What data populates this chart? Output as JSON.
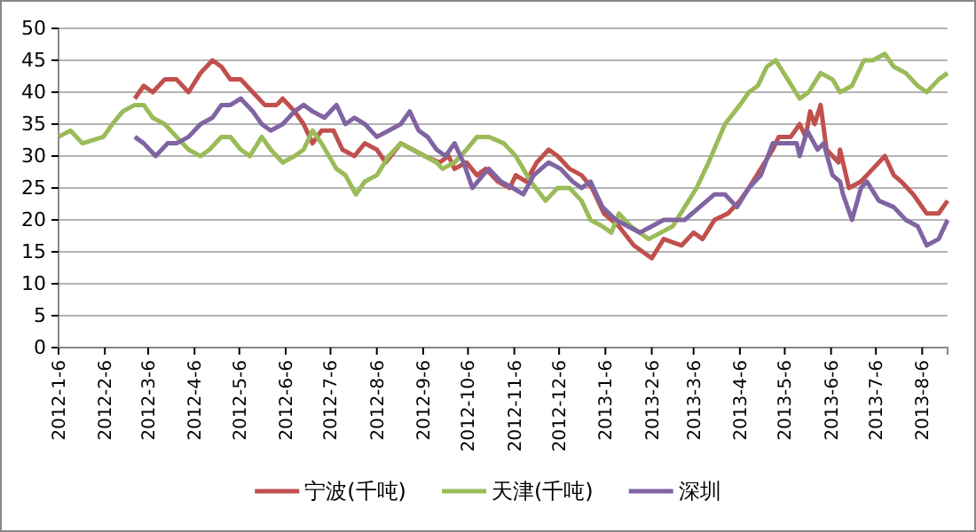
{
  "chart_data": {
    "type": "line",
    "legend": "bottom",
    "grid": "y",
    "marker": "none",
    "line_style": "solid",
    "xlim": [
      "2012-01-06",
      "2013-08-23"
    ],
    "ylim": [
      0,
      50
    ],
    "yticks": [
      0,
      5,
      10,
      15,
      20,
      25,
      30,
      35,
      40,
      45,
      50
    ],
    "xticks": [
      {
        "value": "2012-01-06",
        "label": "2012-1-6"
      },
      {
        "value": "2012-02-06",
        "label": "2012-2-6"
      },
      {
        "value": "2012-03-06",
        "label": "2012-3-6"
      },
      {
        "value": "2012-04-06",
        "label": "2012-4-6"
      },
      {
        "value": "2012-05-06",
        "label": "2012-5-6"
      },
      {
        "value": "2012-06-06",
        "label": "2012-6-6"
      },
      {
        "value": "2012-07-06",
        "label": "2012-7-6"
      },
      {
        "value": "2012-08-06",
        "label": "2012-8-6"
      },
      {
        "value": "2012-09-06",
        "label": "2012-9-6"
      },
      {
        "value": "2012-10-06",
        "label": "2012-10-6"
      },
      {
        "value": "2012-11-06",
        "label": "2012-11-6"
      },
      {
        "value": "2012-12-06",
        "label": "2012-12-6"
      },
      {
        "value": "2013-01-06",
        "label": "2013-1-6"
      },
      {
        "value": "2013-02-06",
        "label": "2013-2-6"
      },
      {
        "value": "2013-03-06",
        "label": "2013-3-6"
      },
      {
        "value": "2013-04-06",
        "label": "2013-4-6"
      },
      {
        "value": "2013-05-06",
        "label": "2013-5-6"
      },
      {
        "value": "2013-06-06",
        "label": "2013-6-6"
      },
      {
        "value": "2013-07-06",
        "label": "2013-7-6"
      },
      {
        "value": "2013-08-06",
        "label": "2013-8-6"
      }
    ],
    "series": [
      {
        "name": "宁波(千吨)",
        "color": "#c0504d",
        "x": [
          "2012-02-26",
          "2012-03-03",
          "2012-03-09",
          "2012-03-17",
          "2012-03-25",
          "2012-04-02",
          "2012-04-10",
          "2012-04-18",
          "2012-04-24",
          "2012-04-30",
          "2012-05-07",
          "2012-05-15",
          "2012-05-23",
          "2012-05-31",
          "2012-06-04",
          "2012-06-12",
          "2012-06-18",
          "2012-06-24",
          "2012-06-30",
          "2012-07-08",
          "2012-07-14",
          "2012-07-22",
          "2012-07-29",
          "2012-08-06",
          "2012-08-12",
          "2012-08-22",
          "2012-08-30",
          "2012-09-07",
          "2012-09-17",
          "2012-09-23",
          "2012-09-27",
          "2012-10-05",
          "2012-10-12",
          "2012-10-18",
          "2012-10-26",
          "2012-11-03",
          "2012-11-07",
          "2012-11-14",
          "2012-11-21",
          "2012-11-29",
          "2012-12-05",
          "2012-12-13",
          "2012-12-21",
          "2012-12-28",
          "2013-01-05",
          "2013-01-15",
          "2013-01-25",
          "2013-02-06",
          "2013-02-14",
          "2013-02-26",
          "2013-03-06",
          "2013-03-12",
          "2013-03-20",
          "2013-03-29",
          "2013-04-06",
          "2013-04-12",
          "2013-04-20",
          "2013-04-28",
          "2013-05-02",
          "2013-05-10",
          "2013-05-16",
          "2013-05-20",
          "2013-05-23",
          "2013-05-26",
          "2013-05-30",
          "2013-06-03",
          "2013-06-11",
          "2013-06-12",
          "2013-06-18",
          "2013-06-26",
          "2013-07-04",
          "2013-07-12",
          "2013-07-18",
          "2013-07-23",
          "2013-07-31",
          "2013-08-09",
          "2013-08-17",
          "2013-08-23"
        ],
        "values": [
          39,
          41,
          40,
          42,
          42,
          40,
          43,
          45,
          44,
          42,
          42,
          40,
          38,
          38,
          39,
          37,
          35,
          32,
          34,
          34,
          31,
          30,
          32,
          31,
          29,
          32,
          31,
          30,
          29,
          30,
          28,
          29,
          27,
          28,
          26,
          25,
          27,
          26,
          29,
          31,
          30,
          28,
          27,
          25,
          21,
          19,
          16,
          14,
          17,
          16,
          18,
          17,
          20,
          21,
          23,
          25,
          28,
          31,
          33,
          33,
          35,
          33,
          37,
          35,
          38,
          31,
          29,
          31,
          25,
          26,
          28,
          30,
          27,
          26,
          24,
          21,
          21,
          23
        ]
      },
      {
        "name": "天津(千吨)",
        "color": "#9bbb59",
        "x": [
          "2012-01-06",
          "2012-01-14",
          "2012-01-22",
          "2012-02-05",
          "2012-02-11",
          "2012-02-18",
          "2012-02-26",
          "2012-03-03",
          "2012-03-09",
          "2012-03-17",
          "2012-03-25",
          "2012-04-02",
          "2012-04-10",
          "2012-04-16",
          "2012-04-24",
          "2012-04-30",
          "2012-05-07",
          "2012-05-13",
          "2012-05-21",
          "2012-05-27",
          "2012-06-04",
          "2012-06-12",
          "2012-06-18",
          "2012-06-24",
          "2012-06-30",
          "2012-07-10",
          "2012-07-16",
          "2012-07-23",
          "2012-07-29",
          "2012-08-06",
          "2012-08-14",
          "2012-08-22",
          "2012-08-30",
          "2012-09-07",
          "2012-09-15",
          "2012-09-19",
          "2012-09-27",
          "2012-10-05",
          "2012-10-12",
          "2012-10-20",
          "2012-10-30",
          "2012-11-07",
          "2012-11-17",
          "2012-11-27",
          "2012-12-05",
          "2012-12-13",
          "2012-12-21",
          "2012-12-27",
          "2013-01-04",
          "2013-01-10",
          "2013-01-15",
          "2013-01-23",
          "2013-02-04",
          "2013-02-12",
          "2013-02-20",
          "2013-02-28",
          "2013-03-08",
          "2013-03-16",
          "2013-03-27",
          "2013-04-06",
          "2013-04-12",
          "2013-04-18",
          "2013-04-24",
          "2013-04-30",
          "2013-05-08",
          "2013-05-16",
          "2013-05-22",
          "2013-05-30",
          "2013-06-07",
          "2013-06-12",
          "2013-06-20",
          "2013-06-28",
          "2013-07-04",
          "2013-07-12",
          "2013-07-18",
          "2013-07-26",
          "2013-08-03",
          "2013-08-09",
          "2013-08-17",
          "2013-08-23"
        ],
        "values": [
          33,
          34,
          32,
          33,
          35,
          37,
          38,
          38,
          36,
          35,
          33,
          31,
          30,
          31,
          33,
          33,
          31,
          30,
          33,
          31,
          29,
          30,
          31,
          34,
          32,
          28,
          27,
          24,
          26,
          27,
          30,
          32,
          31,
          30,
          29,
          28,
          29,
          31,
          33,
          33,
          32,
          30,
          26,
          23,
          25,
          25,
          23,
          20,
          19,
          18,
          21,
          19,
          17,
          18,
          19,
          22,
          25,
          29,
          35,
          38,
          40,
          41,
          44,
          45,
          42,
          39,
          40,
          43,
          42,
          40,
          41,
          45,
          45,
          46,
          44,
          43,
          41,
          40,
          42,
          43
        ]
      },
      {
        "name": "深圳",
        "color": "#8064a2",
        "x": [
          "2012-02-26",
          "2012-03-03",
          "2012-03-11",
          "2012-03-19",
          "2012-03-25",
          "2012-04-02",
          "2012-04-10",
          "2012-04-18",
          "2012-04-24",
          "2012-04-30",
          "2012-05-07",
          "2012-05-15",
          "2012-05-21",
          "2012-05-27",
          "2012-06-04",
          "2012-06-12",
          "2012-06-18",
          "2012-06-24",
          "2012-07-02",
          "2012-07-10",
          "2012-07-16",
          "2012-07-22",
          "2012-07-29",
          "2012-08-06",
          "2012-08-14",
          "2012-08-22",
          "2012-08-28",
          "2012-09-03",
          "2012-09-09",
          "2012-09-15",
          "2012-09-21",
          "2012-09-27",
          "2012-10-03",
          "2012-10-09",
          "2012-10-16",
          "2012-10-20",
          "2012-10-28",
          "2012-11-05",
          "2012-11-12",
          "2012-11-19",
          "2012-11-29",
          "2012-12-07",
          "2012-12-15",
          "2012-12-21",
          "2012-12-27",
          "2013-01-04",
          "2013-01-13",
          "2013-01-21",
          "2013-01-29",
          "2013-02-06",
          "2013-02-14",
          "2013-02-28",
          "2013-03-10",
          "2013-03-20",
          "2013-03-27",
          "2013-04-04",
          "2013-04-12",
          "2013-04-20",
          "2013-04-28",
          "2013-05-06",
          "2013-05-14",
          "2013-05-16",
          "2013-05-21",
          "2013-05-28",
          "2013-06-01",
          "2013-06-07",
          "2013-06-12",
          "2013-06-14",
          "2013-06-20",
          "2013-06-26",
          "2013-06-30",
          "2013-07-08",
          "2013-07-18",
          "2013-07-26",
          "2013-08-03",
          "2013-08-09",
          "2013-08-17",
          "2013-08-23"
        ],
        "values": [
          33,
          32,
          30,
          32,
          32,
          33,
          35,
          36,
          38,
          38,
          39,
          37,
          35,
          34,
          35,
          37,
          38,
          37,
          36,
          38,
          35,
          36,
          35,
          33,
          34,
          35,
          37,
          34,
          33,
          31,
          30,
          32,
          29,
          25,
          27,
          28,
          26,
          25,
          24,
          27,
          29,
          28,
          26,
          25,
          26,
          22,
          20,
          19,
          18,
          19,
          20,
          20,
          22,
          24,
          24,
          22,
          25,
          27,
          32,
          32,
          32,
          30,
          34,
          31,
          32,
          27,
          26,
          24,
          20,
          25,
          26,
          23,
          22,
          20,
          19,
          16,
          17,
          20
        ]
      }
    ]
  }
}
